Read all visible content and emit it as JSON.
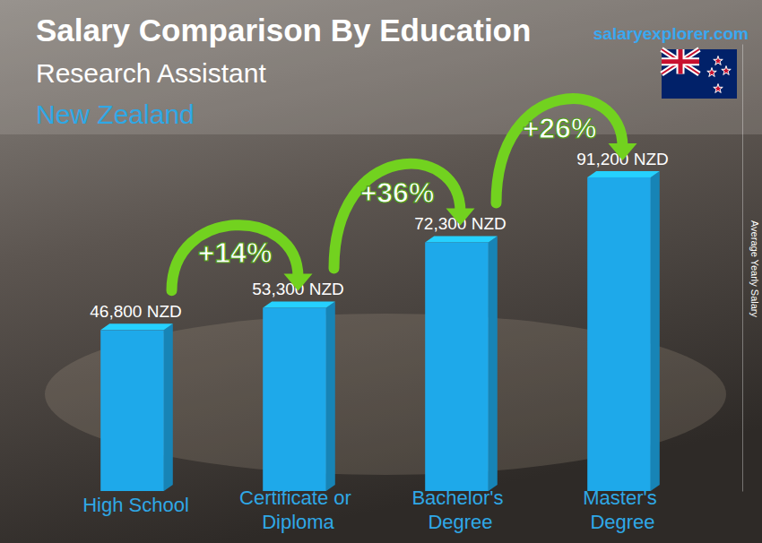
{
  "chart_data": {
    "type": "bar",
    "title": "Salary Comparison By Education",
    "subtitle": [
      "Research Assistant",
      "New Zealand"
    ],
    "source": "salaryexplorer.com",
    "y_label": "Average Yearly Salary",
    "categories": [
      "High School",
      "Certificate or Diploma",
      "Bachelor's Degree",
      "Master's Degree"
    ],
    "values": [
      46800,
      53300,
      72300,
      91200
    ],
    "value_labels": [
      "46,800 NZD",
      "53,300 NZD",
      "72,300 NZD",
      "91,200 NZD"
    ],
    "annotations": [
      "+14%",
      "+36%",
      "+26%"
    ],
    "color": "#1ea9ea",
    "ylim": [
      0,
      130000
    ],
    "grid": false,
    "data_labels": true,
    "tick_labels": false
  }
}
